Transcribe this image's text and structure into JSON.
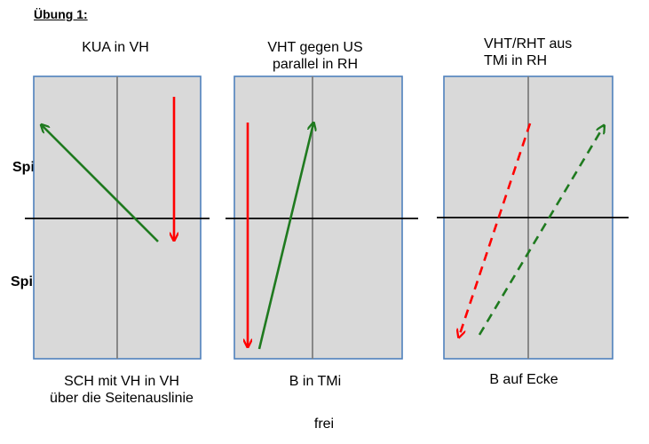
{
  "title": "Übung 1:",
  "players": {
    "a": "Spieler A",
    "b": "Spieler B"
  },
  "panels": [
    {
      "title_lines": [
        "KUA in VH"
      ],
      "caption_lines": [
        "SCH mit VH in VH",
        "über die Seitenauslinie"
      ]
    },
    {
      "title_lines": [
        "VHT gegen US",
        "parallel in RH"
      ],
      "caption_lines": [
        "B in TMi"
      ]
    },
    {
      "title_lines": [
        "VHT/RHT aus",
        "TMi in RH"
      ],
      "caption_lines": [
        "B auf Ecke"
      ]
    }
  ],
  "footer": "frei",
  "colors": {
    "table_fill": "#d9d9d9",
    "table_border": "#4f81bd",
    "center_line": "#7f7f7f",
    "net": "#000000",
    "red_arrow": "#ff0000",
    "green_arrow": "#1f7a1f"
  }
}
